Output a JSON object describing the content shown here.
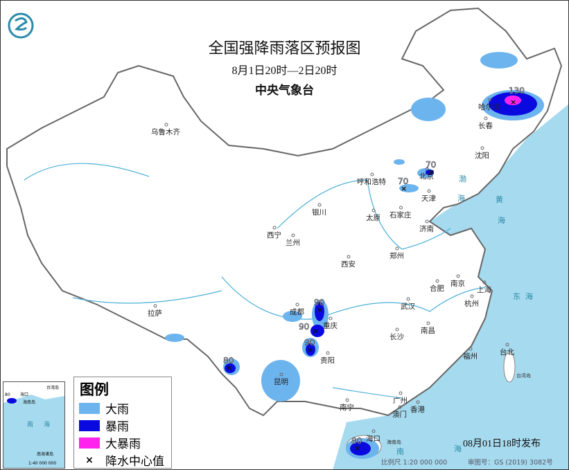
{
  "header": {
    "title": "全国强降雨落区预报图",
    "period": "8月1日20时—2日20时",
    "issuer": "中央气象台"
  },
  "logo": {
    "name": "cma-logo-icon"
  },
  "colors": {
    "heavy_rain": "#6cb4ee",
    "rainstorm": "#0a0ae0",
    "heavy_rainstorm": "#ff22ee",
    "sea": "#a6daee",
    "land": "#ffffff",
    "border": "#777777"
  },
  "legend": {
    "title": "图例",
    "items": [
      {
        "label": "大雨",
        "color": "#6cb4ee"
      },
      {
        "label": "暴雨",
        "color": "#0a0ae0"
      },
      {
        "label": "大暴雨",
        "color": "#ff22ee"
      },
      {
        "label": "降水中心值",
        "symbol": "×"
      }
    ]
  },
  "cities": [
    "乌鲁木齐",
    "哈尔滨",
    "长春",
    "沈阳",
    "北京",
    "天津",
    "呼和浩特",
    "石家庄",
    "太原",
    "济南",
    "银川",
    "西宁",
    "兰州",
    "西安",
    "郑州",
    "合肥",
    "南京",
    "上海",
    "杭州",
    "武汉",
    "成都",
    "重庆",
    "长沙",
    "南昌",
    "拉萨",
    "贵阳",
    "昆明",
    "福州",
    "台北",
    "南宁",
    "广州",
    "澳门",
    "香港",
    "海口"
  ],
  "seas": [
    "渤",
    "海",
    "黄",
    "海",
    "东",
    "海",
    "南",
    "海",
    "台湾岛",
    "海南岛"
  ],
  "rain_centers": [
    "130",
    "70",
    "70",
    "90",
    "90",
    "90",
    "80",
    "80"
  ],
  "inset": {
    "labels": [
      "海口",
      "海南岛",
      "南",
      "海",
      "台湾岛",
      "南海诸岛"
    ],
    "center": "80",
    "scale": "1:40 000 000"
  },
  "footer": {
    "published": "08月01日18时发布",
    "scale": "比例尺 1:20 000 000",
    "approval": "审图号：GS (2019) 3082号"
  }
}
